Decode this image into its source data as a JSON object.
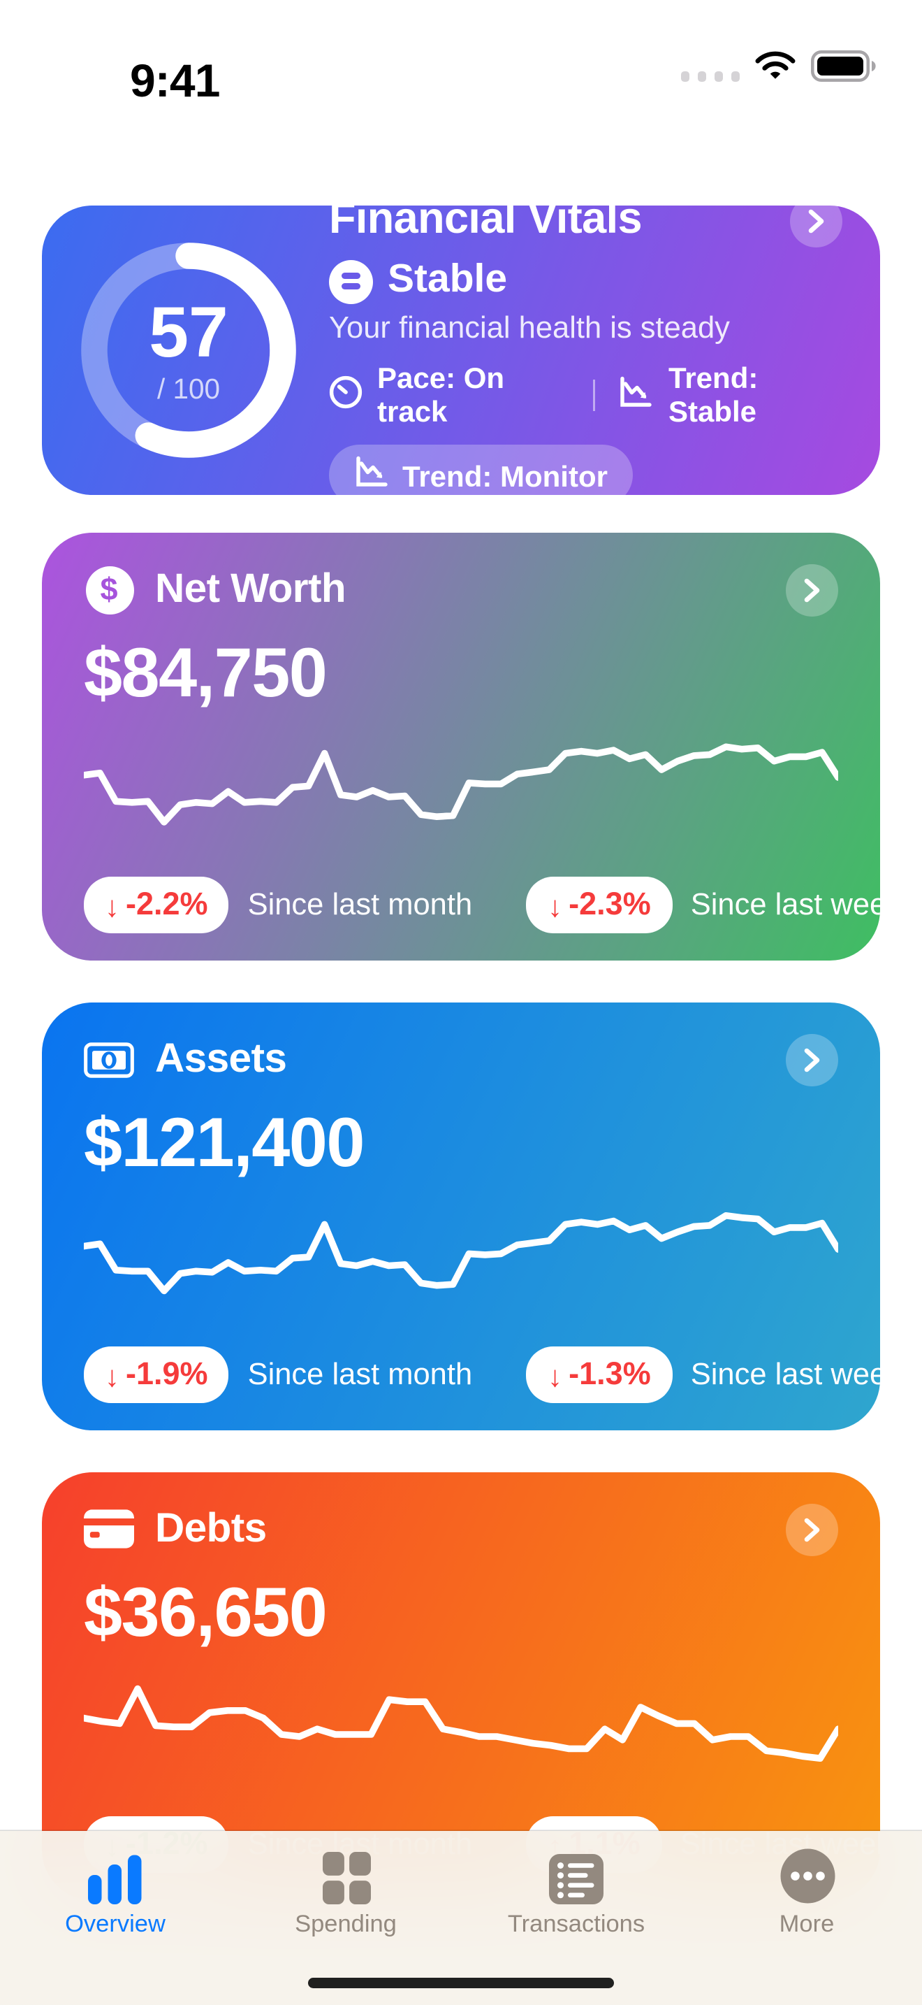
{
  "status_bar": {
    "time": "9:41"
  },
  "vitals": {
    "title": "Financial Vitals",
    "score": "57",
    "score_pct": 57,
    "score_max_label": "/ 100",
    "status_label": "Stable",
    "subtitle": "Your financial health is steady",
    "pace_label": "Pace: On track",
    "trend_label": "Trend: Stable",
    "badge_label": "Trend: Monitor",
    "gradient": [
      "#3b6cf0",
      "#a64ae0"
    ]
  },
  "cards": [
    {
      "title": "Net Worth",
      "icon": "dollar-circle-icon",
      "icon_glyph": "$",
      "icon_color": "#a653dc",
      "amount": "$84,750",
      "gradient": [
        "#ac53df",
        "#3fbe62"
      ],
      "badges": [
        {
          "arrow": "down",
          "value": "-2.2%",
          "value_color": "#f53b3b",
          "label": "Since last month"
        },
        {
          "arrow": "down",
          "value": "-2.3%",
          "value_color": "#f53b3b",
          "label": "Since last week"
        }
      ],
      "sparkline": [
        68,
        70,
        44,
        43,
        44,
        25,
        41,
        43,
        42,
        53,
        43,
        44,
        43,
        57,
        58,
        88,
        50,
        48,
        54,
        48,
        49,
        32,
        30,
        31,
        61,
        60,
        60,
        69,
        71,
        73,
        88,
        90,
        88,
        91,
        83,
        87,
        73,
        81,
        86,
        87,
        94,
        92,
        93,
        81,
        85,
        85,
        89,
        66
      ]
    },
    {
      "title": "Assets",
      "icon": "banknote-icon",
      "amount": "$121,400",
      "gradient": [
        "#0a74f0",
        "#2fa6ce"
      ],
      "badges": [
        {
          "arrow": "down",
          "value": "-1.9%",
          "value_color": "#f53b3b",
          "label": "Since last month"
        },
        {
          "arrow": "down",
          "value": "-1.3%",
          "value_color": "#f53b3b",
          "label": "Since last week"
        }
      ],
      "sparkline": [
        67,
        69,
        45,
        44,
        44,
        26,
        42,
        44,
        43,
        52,
        44,
        45,
        44,
        56,
        57,
        87,
        51,
        49,
        53,
        49,
        50,
        33,
        31,
        32,
        60,
        59,
        60,
        68,
        70,
        72,
        87,
        89,
        87,
        90,
        82,
        86,
        74,
        80,
        85,
        86,
        95,
        93,
        92,
        80,
        84,
        84,
        88,
        64
      ]
    },
    {
      "title": "Debts",
      "icon": "credit-card-icon",
      "amount": "$36,650",
      "gradient": [
        "#f6402c",
        "#f8950f"
      ],
      "badges": [
        {
          "arrow": "down",
          "value": "-1.2%",
          "value_color": "#3db85c",
          "label": "Since last month"
        },
        {
          "arrow": "up",
          "value": "1.1%",
          "value_color": "#f53b3b",
          "label": "Since last week"
        }
      ],
      "sparkline": [
        65,
        62,
        60,
        92,
        58,
        57,
        57,
        70,
        72,
        72,
        65,
        50,
        48,
        55,
        50,
        50,
        50,
        82,
        80,
        80,
        55,
        52,
        48,
        48,
        45,
        42,
        40,
        37,
        37,
        55,
        45,
        75,
        67,
        60,
        60,
        45,
        48,
        48,
        35,
        33,
        30,
        28,
        55
      ]
    }
  ],
  "tab_bar": {
    "active_color": "#0a7aff",
    "inactive_color": "#93897f",
    "items": [
      {
        "label": "Overview",
        "icon": "bar-chart-icon",
        "active": true
      },
      {
        "label": "Spending",
        "icon": "grid-icon",
        "active": false
      },
      {
        "label": "Transactions",
        "icon": "list-icon",
        "active": false
      },
      {
        "label": "More",
        "icon": "ellipsis-icon",
        "active": false
      }
    ]
  }
}
